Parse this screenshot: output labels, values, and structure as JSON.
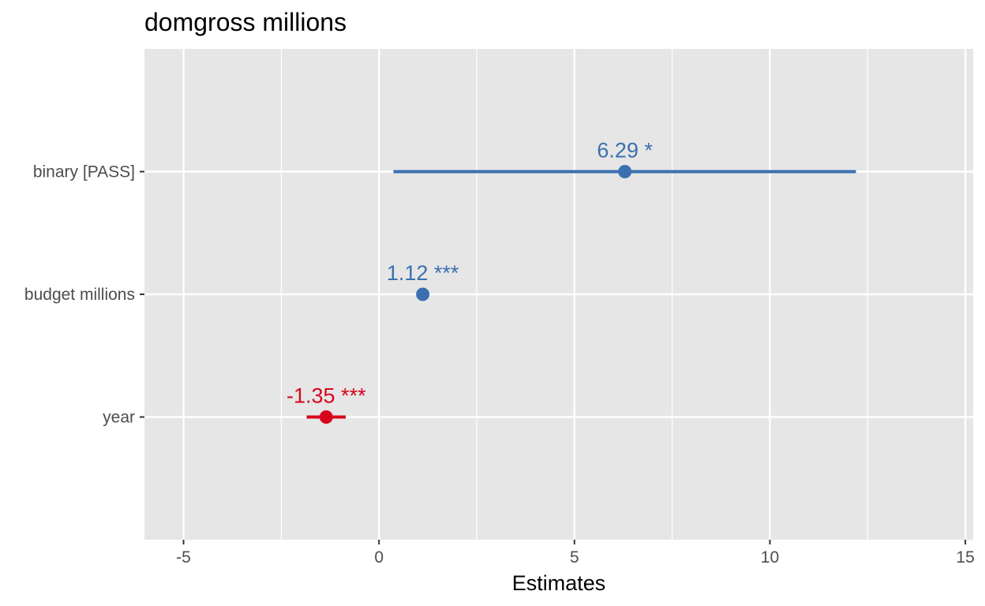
{
  "chart_data": {
    "type": "forest",
    "title": "domgross millions",
    "xlabel": "Estimates",
    "ylabel": "",
    "xlim": [
      -6,
      15.2
    ],
    "x_ticks": [
      -5,
      0,
      5,
      10,
      15
    ],
    "grid": true,
    "legend": "none",
    "colors": {
      "positive": "#3A70B0",
      "negative": "#D7061C",
      "panel": "#E6E6E6",
      "grid": "#FFFFFF"
    },
    "terms": [
      {
        "label": "binary [PASS]",
        "estimate": 6.29,
        "ci_low": 0.37,
        "ci_high": 12.2,
        "significance": "*",
        "value_label": "6.29 *"
      },
      {
        "label": "budget millions",
        "estimate": 1.12,
        "ci_low": 1.02,
        "ci_high": 1.22,
        "significance": "***",
        "value_label": "1.12 ***"
      },
      {
        "label": "year",
        "estimate": -1.35,
        "ci_low": -1.85,
        "ci_high": -0.85,
        "significance": "***",
        "value_label": "-1.35 ***"
      }
    ]
  }
}
